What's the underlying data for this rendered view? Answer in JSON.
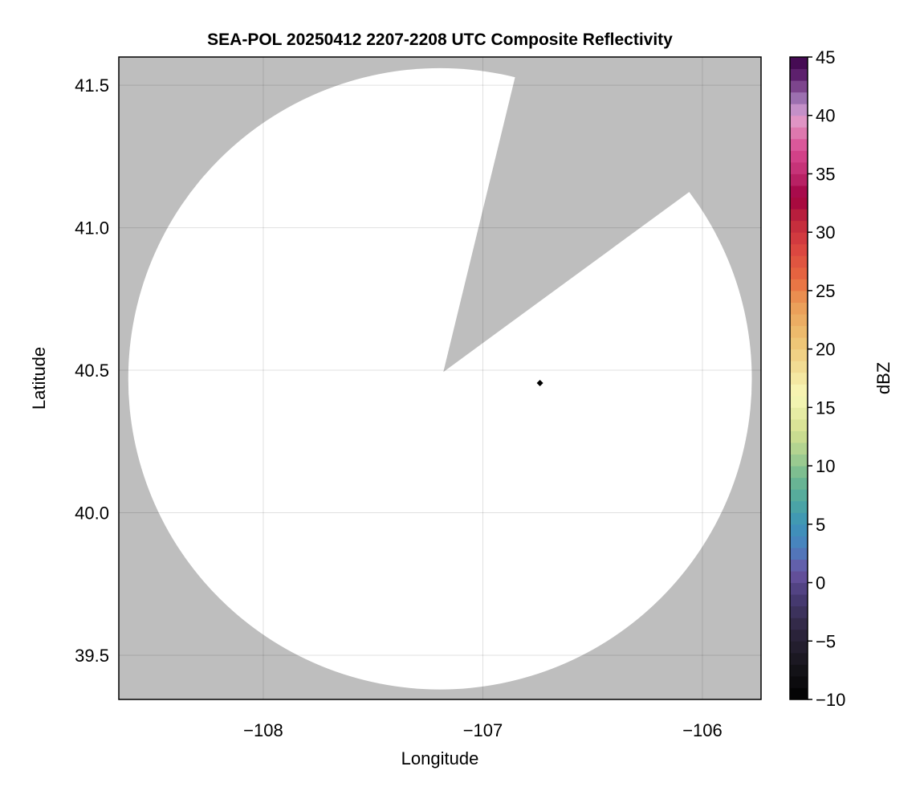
{
  "chart_data": {
    "type": "heatmap",
    "title": "SEA-POL 20250412 2207-2208 UTC Composite Reflectivity",
    "xlabel": "Longitude",
    "ylabel": "Latitude",
    "xlim": [
      -108.658,
      -105.733
    ],
    "ylim": [
      39.345,
      41.599
    ],
    "xticks": [
      -108,
      -107,
      -106
    ],
    "xtick_labels": [
      "−108",
      "−107",
      "−106"
    ],
    "yticks": [
      39.5,
      40.0,
      40.5,
      41.0,
      41.5
    ],
    "ytick_labels": [
      "39.5",
      "40.0",
      "40.5",
      "41.0",
      "41.5"
    ],
    "grid": true,
    "no_data_color": "#bebebe",
    "coverage": {
      "center_lon": -107.195,
      "center_lat": 40.47,
      "radius_lon_deg": 1.42,
      "radius_lat_deg": 1.09,
      "fill": "#ffffff",
      "blocked_sector": [
        [
          -107.18,
          40.494
        ],
        [
          -106.84,
          41.57
        ],
        [
          -106.07,
          41.12
        ]
      ]
    },
    "marker": {
      "lon": -106.74,
      "lat": 40.455,
      "shape": "diamond",
      "color": "#000000"
    },
    "colorbar": {
      "label": "dBZ",
      "range": [
        -10,
        45
      ],
      "step": 1,
      "ticks": [
        -10,
        -5,
        0,
        5,
        10,
        15,
        20,
        25,
        30,
        35,
        40,
        45
      ],
      "tick_labels": [
        "−10",
        "−5",
        "0",
        "5",
        "10",
        "15",
        "20",
        "25",
        "30",
        "35",
        "40",
        "45"
      ],
      "anchors": [
        [
          -10,
          "#000000"
        ],
        [
          -7,
          "#17151c"
        ],
        [
          -4,
          "#2e2640"
        ],
        [
          -1,
          "#4a3d78"
        ],
        [
          1,
          "#6a55a4"
        ],
        [
          3,
          "#4a80c0"
        ],
        [
          5,
          "#3d94b8"
        ],
        [
          7,
          "#4ea8a0"
        ],
        [
          9,
          "#70b890"
        ],
        [
          11,
          "#a8d090"
        ],
        [
          13,
          "#d4e090"
        ],
        [
          16,
          "#f8f8b8"
        ],
        [
          18,
          "#f2e29a"
        ],
        [
          21,
          "#edc070"
        ],
        [
          24,
          "#eb9a55"
        ],
        [
          26,
          "#e86a40"
        ],
        [
          29,
          "#d84040"
        ],
        [
          31,
          "#c0283c"
        ],
        [
          33,
          "#a00040"
        ],
        [
          35,
          "#c02c70"
        ],
        [
          37,
          "#d84890"
        ],
        [
          39,
          "#e088b8"
        ],
        [
          40,
          "#e0a0d0"
        ],
        [
          41,
          "#a880c0"
        ],
        [
          42,
          "#9060a0"
        ],
        [
          43,
          "#6a2a7a"
        ],
        [
          44,
          "#501660"
        ],
        [
          45,
          "#3c0048"
        ]
      ]
    }
  }
}
